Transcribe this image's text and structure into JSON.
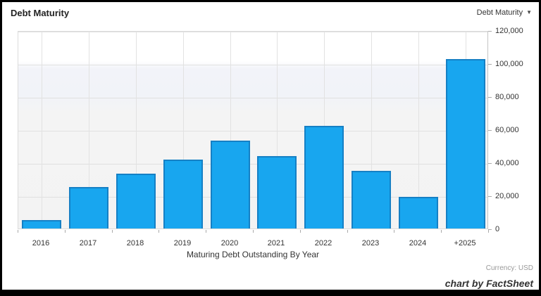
{
  "header": {
    "title": "Debt Maturity",
    "dropdown_label": "Debt Maturity",
    "dropdown_arrow": "▼"
  },
  "chart_data": {
    "type": "bar",
    "title": "Debt Maturity",
    "categories": [
      "2016",
      "2017",
      "2018",
      "2019",
      "2020",
      "2021",
      "2022",
      "2023",
      "2024",
      "+2025"
    ],
    "values": [
      5000,
      25000,
      33000,
      41500,
      53000,
      44000,
      62000,
      35000,
      19000,
      102500
    ],
    "xlabel": "Maturing Debt Outstanding By Year",
    "ylabel": "",
    "ylim": [
      0,
      120000
    ],
    "ytick_interval": 20000,
    "ytick_labels": [
      "0",
      "20,000",
      "40,000",
      "60,000",
      "80,000",
      "100,000",
      "120,000"
    ],
    "grid": true,
    "legend": "none",
    "colors": {
      "bar_fill": "#18a6ef",
      "bar_border": "#1580c5",
      "gridline": "#e0e0e0",
      "text": "#333333",
      "muted_text": "#999999"
    }
  },
  "footer": {
    "currency_note": "Currency: USD",
    "credit": "chart by FactSheet"
  }
}
